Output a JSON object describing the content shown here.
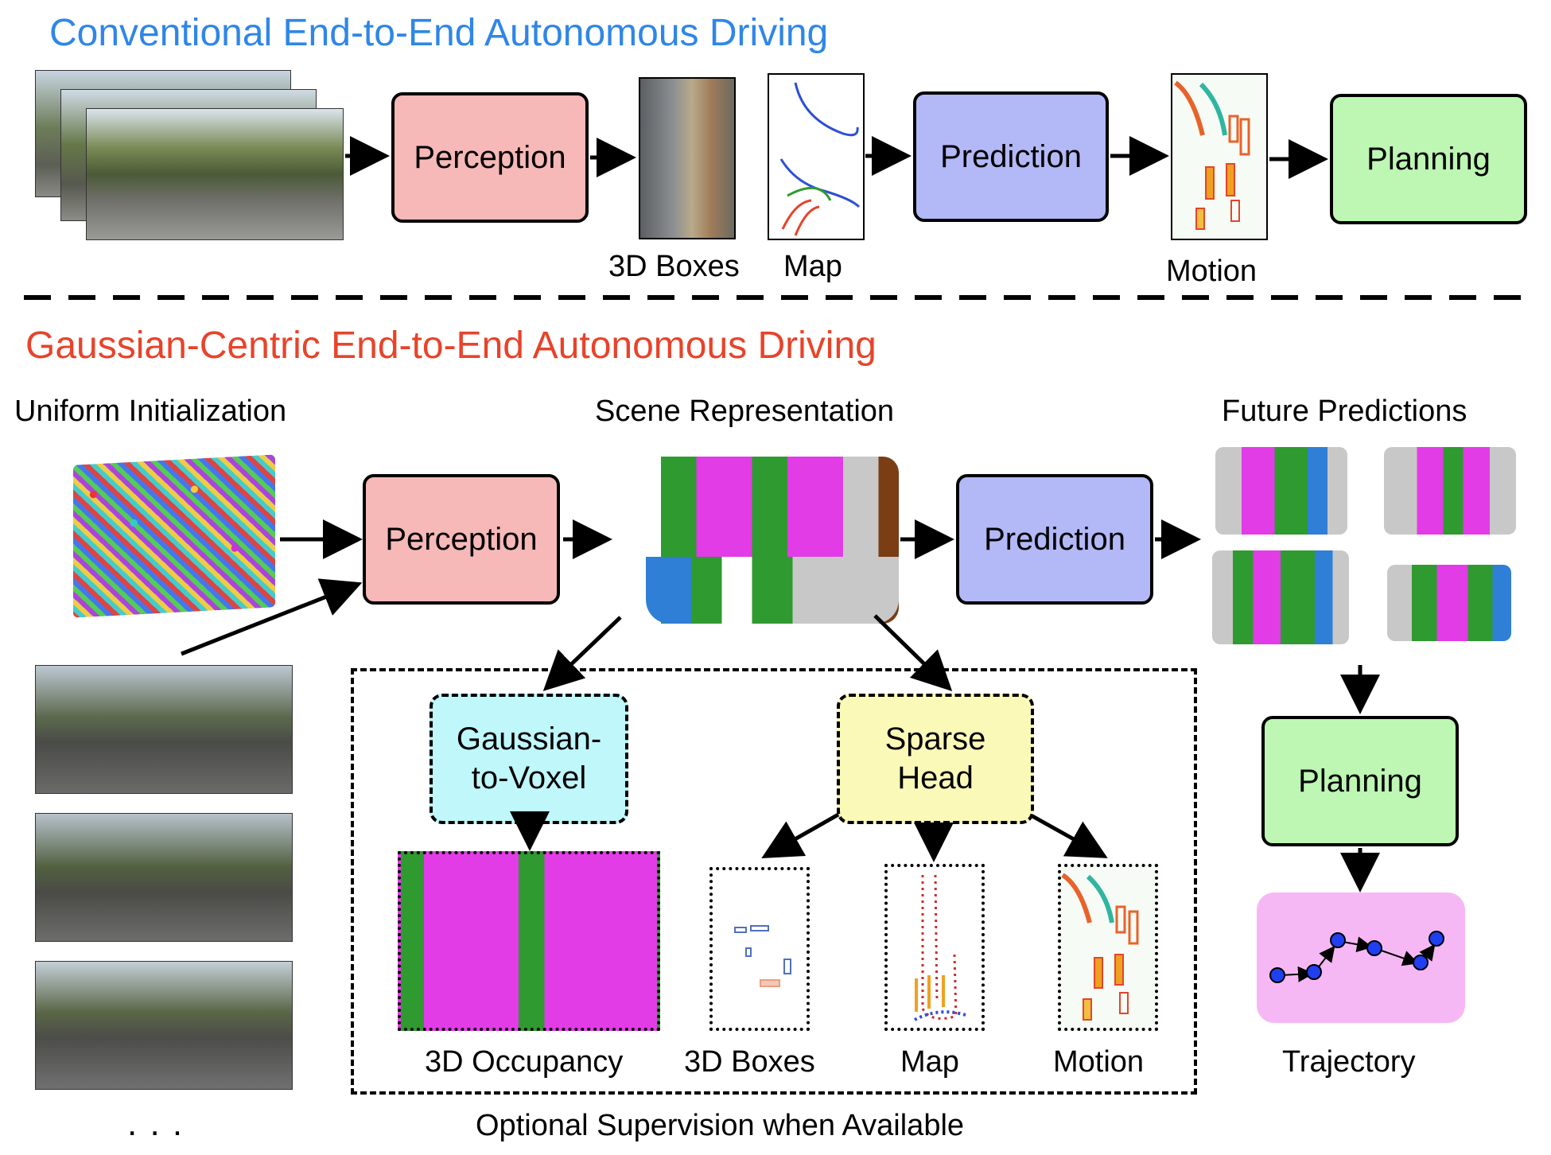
{
  "conventional": {
    "title": "Conventional End-to-End Autonomous Driving",
    "perception": "Perception",
    "prediction": "Prediction",
    "planning": "Planning",
    "labels": {
      "boxes": "3D Boxes",
      "map": "Map",
      "motion": "Motion"
    }
  },
  "gaussian": {
    "title": "Gaussian-Centric End-to-End Autonomous Driving",
    "uniform_init": "Uniform Initialization",
    "scene_rep": "Scene Representation",
    "future_pred": "Future Predictions",
    "perception": "Perception",
    "prediction": "Prediction",
    "planning": "Planning",
    "gaussian_to_voxel": "Gaussian-to-Voxel",
    "sparse_head": "Sparse Head",
    "outputs": {
      "occupancy": "3D Occupancy",
      "boxes": "3D Boxes",
      "map": "Map",
      "motion": "Motion"
    },
    "trajectory": "Trajectory",
    "optional": "Optional Supervision when Available",
    "ellipsis": ". . ."
  },
  "colors": {
    "conventional_title": "#2f86e8",
    "gaussian_title": "#e8432a",
    "perception_fill": "#f7b8b8",
    "prediction_fill": "#b3b8f7",
    "planning_fill": "#bdf7b3",
    "voxel_fill": "#bff7fb",
    "sparse_fill": "#fbf9b8",
    "trajectory_fill": "#f6b8f5",
    "magenta": "#e23ce6",
    "green": "#2f9a2f",
    "blue": "#2f7fd6"
  }
}
